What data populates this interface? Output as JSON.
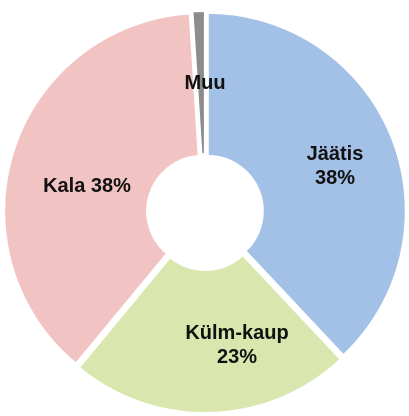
{
  "chart_data": {
    "type": "donut",
    "categories": [
      "Jäätis",
      "Külm-kaup",
      "Kala",
      "Muu"
    ],
    "values": [
      38,
      23,
      38,
      1
    ],
    "value_labels": [
      "38%",
      "23%",
      "38%",
      null
    ],
    "colors": [
      "#a3c0e6",
      "#d9e6ad",
      "#f2c3c3",
      "#8c8c8c"
    ]
  }
}
